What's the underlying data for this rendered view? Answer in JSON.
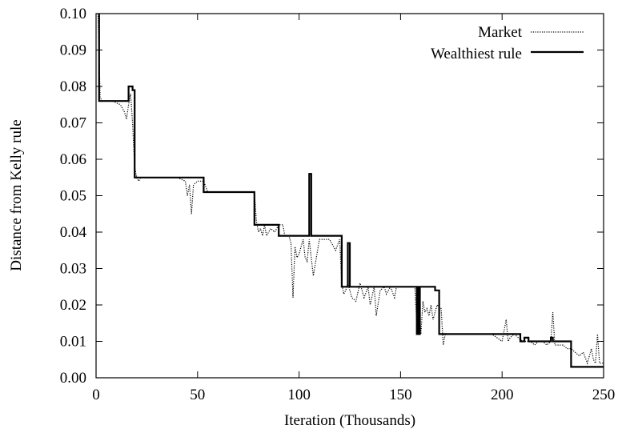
{
  "chart_data": {
    "type": "line",
    "xlabel": "Iteration (Thousands)",
    "ylabel": "Distance from Kelly rule",
    "xlim": [
      0,
      250
    ],
    "ylim": [
      0,
      0.1
    ],
    "xticks": [
      0,
      50,
      100,
      150,
      200,
      250
    ],
    "yticks": [
      "0.00",
      "0.01",
      "0.02",
      "0.03",
      "0.04",
      "0.05",
      "0.06",
      "0.07",
      "0.08",
      "0.09",
      "0.10"
    ],
    "legend_position": "top-right",
    "series": [
      {
        "name": "Market",
        "style": "dotted",
        "x": [
          1,
          2,
          3,
          5,
          8,
          12,
          14,
          15,
          16,
          17,
          18,
          19,
          20,
          21,
          22,
          25,
          30,
          35,
          40,
          44,
          45,
          46,
          47,
          48,
          50,
          53,
          55,
          60,
          65,
          70,
          75,
          78,
          79,
          80,
          81,
          82,
          83,
          84,
          86,
          88,
          90,
          92,
          93,
          95,
          96,
          97,
          98,
          99,
          100,
          101,
          102,
          103,
          104,
          105,
          106,
          107,
          110,
          115,
          118,
          120,
          121,
          122,
          123,
          124,
          126,
          128,
          130,
          132,
          134,
          135,
          137,
          138,
          140,
          142,
          143,
          145,
          147,
          148,
          150,
          152,
          154,
          156,
          157,
          158,
          159,
          160,
          161,
          162,
          163,
          164,
          165,
          166,
          168,
          170,
          171,
          172,
          175,
          180,
          185,
          190,
          195,
          200,
          202,
          203,
          204,
          206,
          208,
          210,
          212,
          214,
          216,
          218,
          220,
          222,
          224,
          225,
          226,
          228,
          230,
          232,
          234,
          236,
          238,
          240,
          242,
          244,
          245,
          246,
          247,
          248,
          250
        ],
        "values": [
          0.1,
          0.077,
          0.076,
          0.076,
          0.076,
          0.075,
          0.073,
          0.071,
          0.075,
          0.078,
          0.07,
          0.058,
          0.055,
          0.054,
          0.055,
          0.055,
          0.055,
          0.055,
          0.055,
          0.054,
          0.05,
          0.053,
          0.045,
          0.053,
          0.054,
          0.054,
          0.051,
          0.051,
          0.051,
          0.051,
          0.051,
          0.051,
          0.043,
          0.04,
          0.041,
          0.039,
          0.042,
          0.039,
          0.041,
          0.04,
          0.042,
          0.042,
          0.039,
          0.039,
          0.037,
          0.022,
          0.036,
          0.033,
          0.034,
          0.036,
          0.038,
          0.033,
          0.032,
          0.038,
          0.033,
          0.028,
          0.038,
          0.038,
          0.035,
          0.038,
          0.026,
          0.023,
          0.024,
          0.026,
          0.022,
          0.021,
          0.026,
          0.022,
          0.025,
          0.02,
          0.025,
          0.017,
          0.024,
          0.025,
          0.023,
          0.025,
          0.022,
          0.025,
          0.025,
          0.025,
          0.025,
          0.025,
          0.025,
          0.015,
          0.02,
          0.012,
          0.021,
          0.018,
          0.019,
          0.017,
          0.02,
          0.016,
          0.02,
          0.019,
          0.009,
          0.012,
          0.012,
          0.012,
          0.012,
          0.012,
          0.012,
          0.01,
          0.016,
          0.01,
          0.011,
          0.012,
          0.011,
          0.01,
          0.01,
          0.01,
          0.009,
          0.01,
          0.01,
          0.009,
          0.01,
          0.018,
          0.009,
          0.009,
          0.009,
          0.008,
          0.008,
          0.007,
          0.006,
          0.007,
          0.004,
          0.008,
          0.005,
          0.004,
          0.012,
          0.004,
          0.004
        ]
      },
      {
        "name": "Wealthiest rule",
        "style": "solid",
        "x": [
          1.5,
          1.5,
          16,
          16,
          18,
          18,
          19,
          19,
          53,
          53,
          78,
          78,
          90,
          90,
          105,
          105,
          106,
          106,
          121,
          121,
          124,
          124,
          125,
          125,
          158,
          158,
          158.5,
          158.5,
          159,
          159,
          159.5,
          159.5,
          160,
          160,
          163,
          163,
          167,
          167,
          169,
          169,
          209,
          209,
          211,
          211,
          213,
          213,
          224,
          224,
          225,
          225,
          226,
          226,
          234,
          234,
          250
        ],
        "values": [
          0.1,
          0.076,
          0.076,
          0.08,
          0.08,
          0.079,
          0.079,
          0.055,
          0.055,
          0.051,
          0.051,
          0.042,
          0.042,
          0.039,
          0.039,
          0.056,
          0.056,
          0.039,
          0.039,
          0.025,
          0.025,
          0.037,
          0.037,
          0.025,
          0.025,
          0.012,
          0.012,
          0.025,
          0.025,
          0.012,
          0.012,
          0.025,
          0.025,
          0.025,
          0.025,
          0.025,
          0.025,
          0.024,
          0.024,
          0.012,
          0.012,
          0.01,
          0.01,
          0.011,
          0.011,
          0.01,
          0.01,
          0.011,
          0.011,
          0.01,
          0.01,
          0.01,
          0.01,
          0.003,
          0.003
        ]
      }
    ]
  }
}
